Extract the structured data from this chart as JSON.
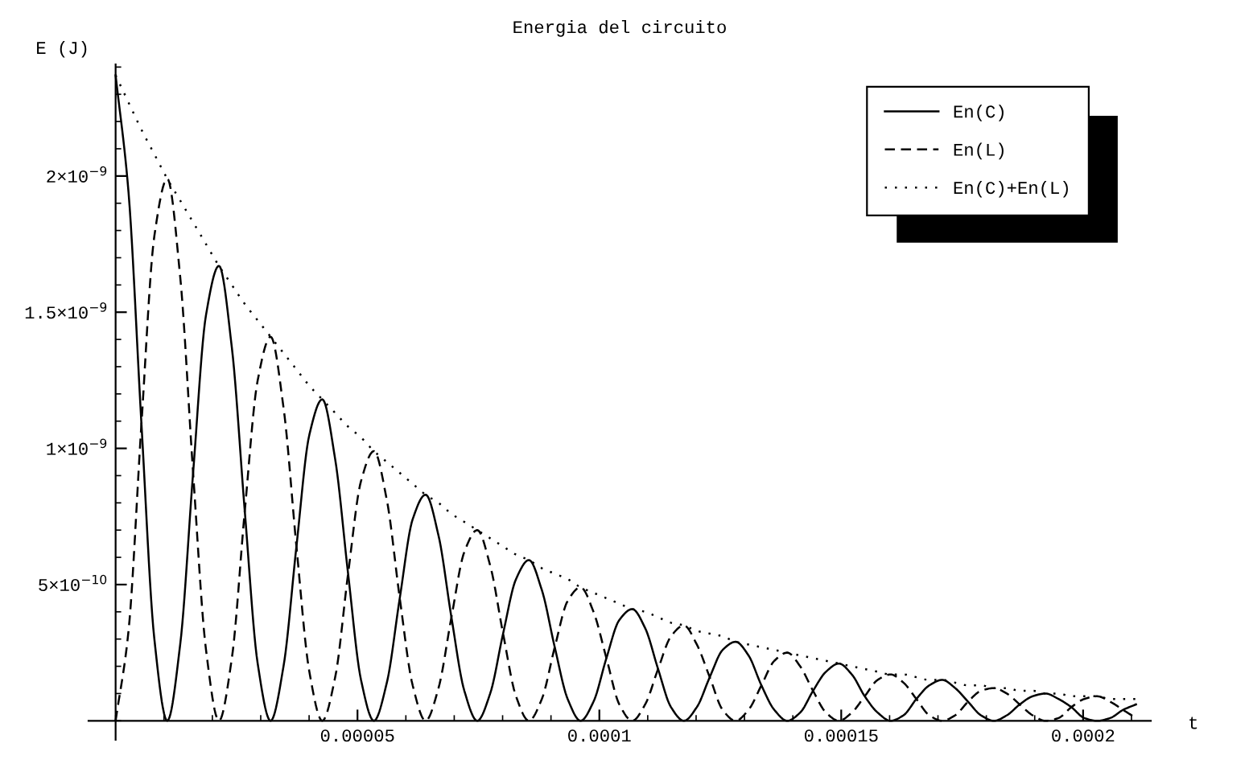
{
  "chart_data": {
    "type": "line",
    "title": "Energia del circuito",
    "xlabel": "t",
    "ylabel": "E (J)",
    "x": [
      0,
      2.67e-06,
      5.34e-06,
      8.01e-06,
      1.068e-05,
      1.335e-05,
      1.602e-05,
      1.869e-05,
      2.136e-05,
      2.403e-05,
      2.67e-05,
      2.937e-05,
      3.204e-05,
      3.471e-05,
      3.738e-05,
      4.005e-05,
      4.272e-05,
      4.539e-05,
      4.806e-05,
      5.073e-05,
      5.34e-05,
      5.607e-05,
      5.874e-05,
      6.141e-05,
      6.408e-05,
      6.675e-05,
      6.942e-05,
      7.209e-05,
      7.476e-05,
      7.743e-05,
      8.01e-05,
      8.277e-05,
      8.544e-05,
      8.811e-05,
      9.078e-05,
      9.345e-05,
      9.612e-05,
      9.879e-05,
      0.00010146,
      0.00010413,
      0.0001068,
      0.00010947,
      0.00011214,
      0.00011481,
      0.00011748,
      0.00012015,
      0.00012282,
      0.00012549,
      0.00012816,
      0.00013083,
      0.0001335,
      0.00013617,
      0.00013884,
      0.00014151,
      0.00014418,
      0.00014685,
      0.00014952,
      0.00015219,
      0.00015486,
      0.00015753,
      0.0001602,
      0.00016287,
      0.00016554,
      0.00016821,
      0.00017088,
      0.00017355,
      0.00017622,
      0.00017889,
      0.00018156,
      0.00018423,
      0.0001869,
      0.00018957,
      0.00019224,
      0.00019491,
      0.00019758,
      0.00020025,
      0.00020292,
      0.00020559,
      0.00020826,
      0.00021093
    ],
    "series": [
      {
        "name": "En(C)",
        "color": "#000000",
        "line_style": "solid",
        "values": [
          2.37e-09,
          1.94e-09,
          1.09e-09,
          3e-10,
          0,
          2.8e-10,
          9.1e-10,
          1.49e-09,
          1.67e-09,
          1.37e-09,
          7.7e-10,
          2.1e-10,
          0,
          2e-10,
          6.4e-10,
          1.05e-09,
          1.18e-09,
          9.6e-10,
          5.4e-10,
          1.5e-10,
          0,
          1.4e-10,
          4.5e-10,
          7.4e-10,
          8.3e-10,
          6.8e-10,
          3.8e-10,
          1.1e-10,
          0,
          1e-10,
          3.2e-10,
          5.2e-10,
          5.9e-10,
          4.8e-10,
          2.7e-10,
          8e-11,
          0,
          7e-11,
          2.3e-10,
          3.7e-10,
          4.1e-10,
          3.4e-10,
          1.9e-10,
          5e-11,
          0,
          5e-11,
          1.6e-10,
          2.6e-10,
          2.9e-10,
          2.4e-10,
          1.3e-10,
          4e-11,
          0,
          3e-11,
          1.1e-10,
          1.8e-10,
          2.1e-10,
          1.7e-10,
          9e-11,
          3e-11,
          0,
          2e-11,
          8e-11,
          1.3e-10,
          1.5e-10,
          1.2e-10,
          7e-11,
          2e-11,
          0,
          2e-11,
          6e-11,
          9e-11,
          1e-10,
          8e-11,
          5e-11,
          1e-11,
          0,
          1e-11,
          4e-11,
          6e-11
        ]
      },
      {
        "name": "En(L)",
        "color": "#000000",
        "line_style": "dashed",
        "values": [
          0,
          3.3e-10,
          1.09e-09,
          1.78e-09,
          1.99e-09,
          1.63e-09,
          9.1e-10,
          2.6e-10,
          0,
          2.3e-10,
          7.7e-10,
          1.25e-09,
          1.41e-09,
          1.15e-09,
          6.4e-10,
          1.8e-10,
          0,
          1.6e-10,
          5.4e-10,
          8.8e-10,
          9.9e-10,
          8.1e-10,
          4.5e-10,
          1.3e-10,
          0,
          1.2e-10,
          3.8e-10,
          6.2e-10,
          7e-10,
          5.7e-10,
          3.2e-10,
          9e-11,
          0,
          8e-11,
          2.7e-10,
          4.4e-10,
          4.9e-10,
          4e-10,
          2.3e-10,
          6e-11,
          0,
          6e-11,
          1.9e-10,
          3.1e-10,
          3.5e-10,
          2.8e-10,
          1.6e-10,
          4e-11,
          0,
          4e-11,
          1.3e-10,
          2.2e-10,
          2.5e-10,
          2e-10,
          1.1e-10,
          3e-11,
          0,
          3e-11,
          9e-11,
          1.5e-10,
          1.7e-10,
          1.4e-10,
          8e-11,
          2e-11,
          0,
          2e-11,
          7e-11,
          1.1e-10,
          1.2e-10,
          1e-10,
          6e-11,
          2e-11,
          0,
          1e-11,
          5e-11,
          8e-11,
          9e-11,
          7e-11,
          4e-11,
          1e-11
        ]
      },
      {
        "name": "En(C)+En(L)",
        "color": "#000000",
        "line_style": "dotted",
        "values": [
          2.37e-09,
          2.27e-09,
          2.17e-09,
          2.08e-09,
          1.99e-09,
          1.91e-09,
          1.83e-09,
          1.75e-09,
          1.67e-09,
          1.6e-09,
          1.53e-09,
          1.47e-09,
          1.41e-09,
          1.35e-09,
          1.29e-09,
          1.23e-09,
          1.18e-09,
          1.13e-09,
          1.08e-09,
          1.04e-09,
          9.9e-10,
          9.5e-10,
          9.1e-10,
          8.7e-10,
          8.3e-10,
          8e-10,
          7.6e-10,
          7.3e-10,
          7e-10,
          6.7e-10,
          6.4e-10,
          6.1e-10,
          5.9e-10,
          5.6e-10,
          5.4e-10,
          5.2e-10,
          4.9e-10,
          4.7e-10,
          4.5e-10,
          4.3e-10,
          4.1e-10,
          4e-10,
          3.8e-10,
          3.6e-10,
          3.5e-10,
          3.3e-10,
          3.2e-10,
          3.1e-10,
          2.9e-10,
          2.8e-10,
          2.7e-10,
          2.6e-10,
          2.5e-10,
          2.4e-10,
          2.3e-10,
          2.2e-10,
          2.1e-10,
          2e-10,
          1.9e-10,
          1.8e-10,
          1.7e-10,
          1.7e-10,
          1.6e-10,
          1.5e-10,
          1.5e-10,
          1.4e-10,
          1.3e-10,
          1.3e-10,
          1.2e-10,
          1.2e-10,
          1.1e-10,
          1.1e-10,
          1e-10,
          1e-10,
          9e-11,
          9e-11,
          9e-11,
          8e-11,
          8e-11,
          8e-11
        ]
      }
    ],
    "xlim": [
      -5.6e-06,
      0.000214
    ],
    "ylim": [
      -7e-11,
      2.41e-09
    ],
    "xticks": [
      {
        "value": 5e-05,
        "label": "0.00005"
      },
      {
        "value": 0.0001,
        "label": "0.0001"
      },
      {
        "value": 0.00015,
        "label": "0.00015"
      },
      {
        "value": 0.0002,
        "label": "0.0002"
      }
    ],
    "yticks": [
      {
        "value": 5e-10,
        "label": "5×10$^{−10}$"
      },
      {
        "value": 1e-09,
        "label": "1×10$^{−9}$"
      },
      {
        "value": 1.5e-09,
        "label": "1.5×10$^{−9}$"
      },
      {
        "value": 2e-09,
        "label": "2×10$^{−9}$"
      }
    ],
    "grid": false,
    "legend": "top right",
    "marker": "none"
  }
}
